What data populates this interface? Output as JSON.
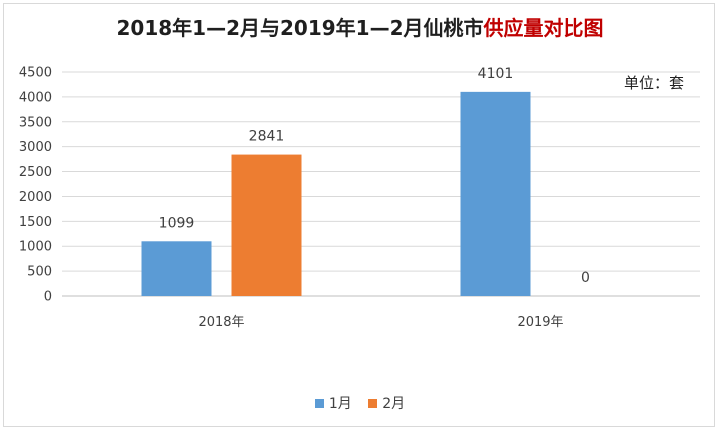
{
  "chart_data": {
    "type": "bar",
    "title_main": "2018年1—2月与2019年1—2月仙桃市",
    "title_highlight": "供应量对比图",
    "unit_label": "单位：套",
    "categories": [
      "2018年",
      "2019年"
    ],
    "series": [
      {
        "name": "1月",
        "values": [
          1099,
          4101
        ],
        "color": "#5b9bd5"
      },
      {
        "name": "2月",
        "values": [
          2841,
          0
        ],
        "color": "#ed7d31"
      }
    ],
    "ylim": [
      0,
      4500
    ],
    "yticks": [
      0,
      500,
      1000,
      1500,
      2000,
      2500,
      3000,
      3500,
      4000,
      4500
    ],
    "grid": true,
    "legend_position": "bottom"
  }
}
